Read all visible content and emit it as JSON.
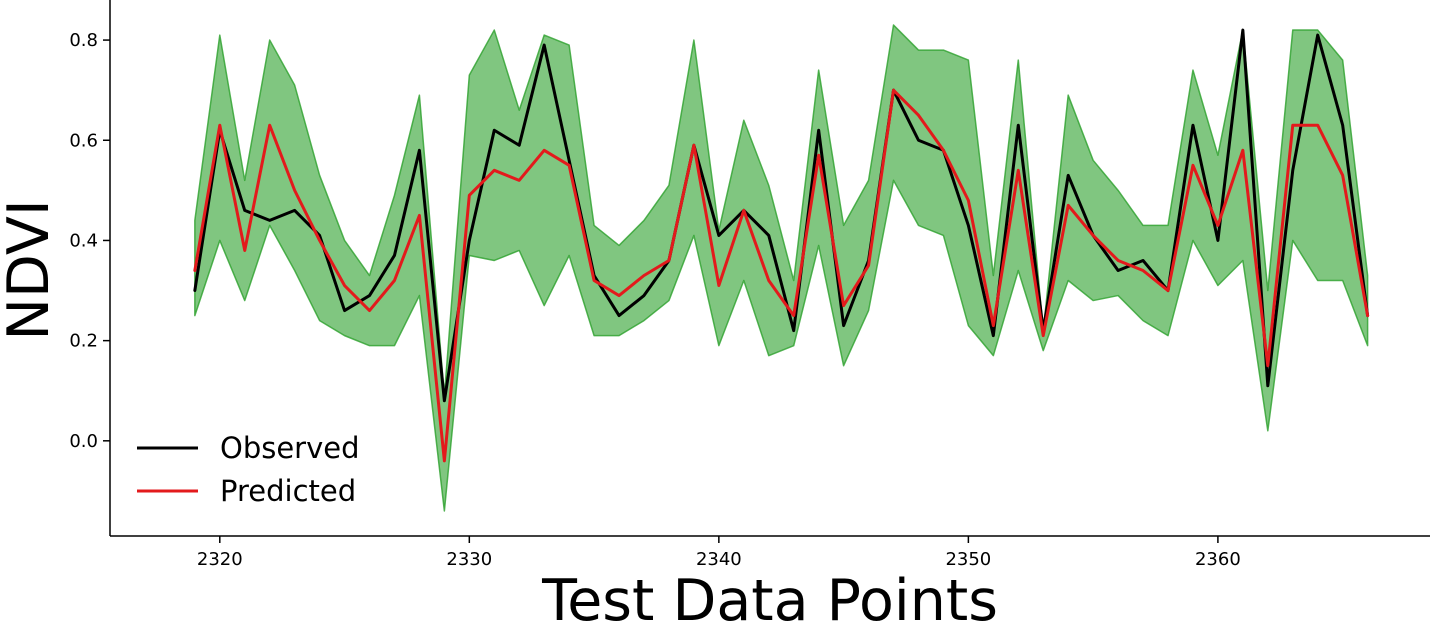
{
  "chart_data": {
    "type": "line",
    "title": "",
    "xlabel": "Test Data Points",
    "ylabel": "NDVI",
    "xlim": [
      2315.6,
      2368.5
    ],
    "ylim": [
      -0.19,
      0.88
    ],
    "xticks": [
      2320,
      2330,
      2340,
      2350,
      2360
    ],
    "yticks": [
      0.0,
      0.2,
      0.4,
      0.6,
      0.8
    ],
    "ytick_labels": [
      "0.0",
      "0.2",
      "0.4",
      "0.6",
      "0.8"
    ],
    "grid": false,
    "legend_position": "bottom-left",
    "x": [
      2319,
      2320,
      2321,
      2322,
      2323,
      2324,
      2325,
      2326,
      2327,
      2328,
      2329,
      2330,
      2331,
      2332,
      2333,
      2334,
      2335,
      2336,
      2337,
      2338,
      2339,
      2340,
      2341,
      2342,
      2343,
      2344,
      2345,
      2346,
      2347,
      2348,
      2349,
      2350,
      2351,
      2352,
      2353,
      2354,
      2355,
      2356,
      2357,
      2358,
      2359,
      2360,
      2361,
      2362,
      2363,
      2364,
      2365,
      2366
    ],
    "band": {
      "color": "#2ca02c",
      "upper": [
        0.44,
        0.81,
        0.52,
        0.8,
        0.71,
        0.53,
        0.4,
        0.33,
        0.49,
        0.69,
        0.09,
        0.73,
        0.82,
        0.66,
        0.81,
        0.79,
        0.43,
        0.39,
        0.44,
        0.51,
        0.8,
        0.42,
        0.64,
        0.51,
        0.32,
        0.74,
        0.43,
        0.52,
        0.83,
        0.78,
        0.78,
        0.76,
        0.33,
        0.76,
        0.22,
        0.69,
        0.56,
        0.5,
        0.43,
        0.43,
        0.74,
        0.57,
        0.82,
        0.3,
        0.82,
        0.82,
        0.76,
        0.33
      ],
      "lower": [
        0.25,
        0.4,
        0.28,
        0.43,
        0.34,
        0.24,
        0.21,
        0.19,
        0.19,
        0.29,
        -0.14,
        0.37,
        0.36,
        0.38,
        0.27,
        0.37,
        0.21,
        0.21,
        0.24,
        0.28,
        0.41,
        0.19,
        0.32,
        0.17,
        0.19,
        0.39,
        0.15,
        0.26,
        0.52,
        0.43,
        0.41,
        0.23,
        0.17,
        0.34,
        0.18,
        0.32,
        0.28,
        0.29,
        0.24,
        0.21,
        0.4,
        0.31,
        0.36,
        0.02,
        0.4,
        0.32,
        0.32,
        0.19
      ]
    },
    "series": [
      {
        "name": "Observed",
        "color": "#000000",
        "values": [
          0.3,
          0.62,
          0.46,
          0.44,
          0.46,
          0.41,
          0.26,
          0.29,
          0.37,
          0.58,
          0.08,
          0.4,
          0.62,
          0.59,
          0.79,
          0.56,
          0.33,
          0.25,
          0.29,
          0.36,
          0.59,
          0.41,
          0.46,
          0.41,
          0.22,
          0.62,
          0.23,
          0.36,
          0.7,
          0.6,
          0.58,
          0.43,
          0.21,
          0.63,
          0.22,
          0.53,
          0.41,
          0.34,
          0.36,
          0.3,
          0.63,
          0.4,
          0.82,
          0.11,
          0.54,
          0.81,
          0.63,
          0.25
        ]
      },
      {
        "name": "Predicted",
        "color": "#e31a1c",
        "values": [
          0.34,
          0.63,
          0.38,
          0.63,
          0.5,
          0.4,
          0.31,
          0.26,
          0.32,
          0.45,
          -0.04,
          0.49,
          0.54,
          0.52,
          0.58,
          0.55,
          0.32,
          0.29,
          0.33,
          0.36,
          0.59,
          0.31,
          0.46,
          0.32,
          0.25,
          0.57,
          0.27,
          0.35,
          0.7,
          0.65,
          0.58,
          0.48,
          0.23,
          0.54,
          0.21,
          0.47,
          0.41,
          0.36,
          0.34,
          0.3,
          0.55,
          0.43,
          0.58,
          0.15,
          0.63,
          0.63,
          0.53,
          0.25
        ]
      }
    ]
  }
}
